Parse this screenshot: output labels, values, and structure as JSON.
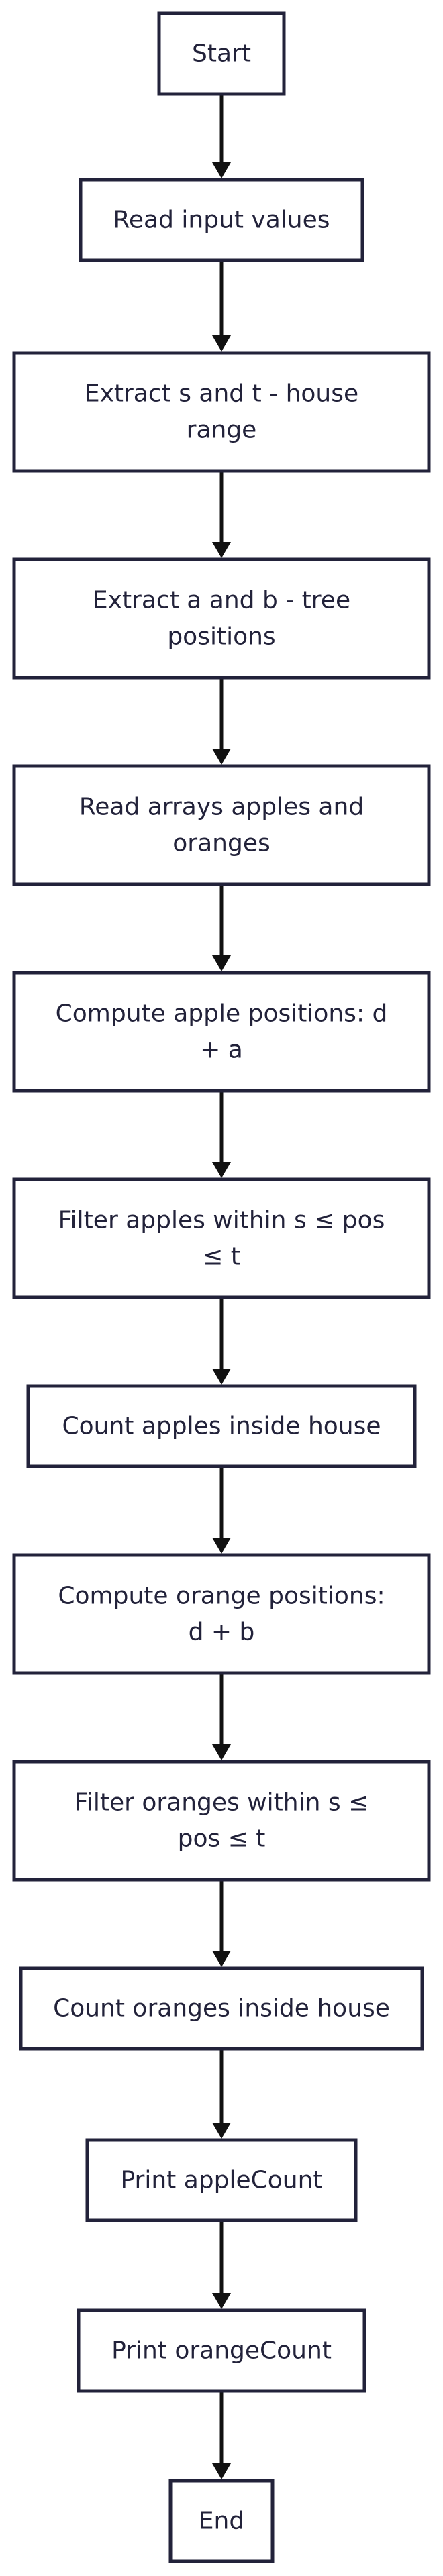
{
  "flowchart": {
    "nodes": [
      {
        "id": "start",
        "lines": [
          "Start"
        ]
      },
      {
        "id": "read-input",
        "lines": [
          "Read input values"
        ]
      },
      {
        "id": "extract-st",
        "lines": [
          "Extract s and t - house",
          "range"
        ]
      },
      {
        "id": "extract-ab",
        "lines": [
          "Extract a and b - tree",
          "positions"
        ]
      },
      {
        "id": "read-arrays",
        "lines": [
          "Read arrays apples and",
          "oranges"
        ]
      },
      {
        "id": "compute-apple",
        "lines": [
          "Compute apple positions: d",
          "+ a"
        ]
      },
      {
        "id": "filter-apples",
        "lines": [
          "Filter apples within s ≤ pos",
          "≤ t"
        ]
      },
      {
        "id": "count-apples",
        "lines": [
          "Count apples inside house"
        ]
      },
      {
        "id": "compute-orange",
        "lines": [
          "Compute orange positions:",
          "d + b"
        ]
      },
      {
        "id": "filter-oranges",
        "lines": [
          "Filter oranges within s ≤",
          "pos ≤ t"
        ]
      },
      {
        "id": "count-oranges",
        "lines": [
          "Count oranges inside house"
        ]
      },
      {
        "id": "print-apple",
        "lines": [
          "Print appleCount"
        ]
      },
      {
        "id": "print-orange",
        "lines": [
          "Print orangeCount"
        ]
      },
      {
        "id": "end",
        "lines": [
          "End"
        ]
      }
    ],
    "edges": [
      [
        "start",
        "read-input"
      ],
      [
        "read-input",
        "extract-st"
      ],
      [
        "extract-st",
        "extract-ab"
      ],
      [
        "extract-ab",
        "read-arrays"
      ],
      [
        "read-arrays",
        "compute-apple"
      ],
      [
        "compute-apple",
        "filter-apples"
      ],
      [
        "filter-apples",
        "count-apples"
      ],
      [
        "count-apples",
        "compute-orange"
      ],
      [
        "compute-orange",
        "filter-oranges"
      ],
      [
        "filter-oranges",
        "count-oranges"
      ],
      [
        "count-oranges",
        "print-apple"
      ],
      [
        "print-apple",
        "print-orange"
      ],
      [
        "print-orange",
        "end"
      ]
    ],
    "colors": {
      "node_border": "#22223a",
      "node_fill": "#ffffff",
      "text": "#22223a",
      "edge": "#111111"
    }
  }
}
